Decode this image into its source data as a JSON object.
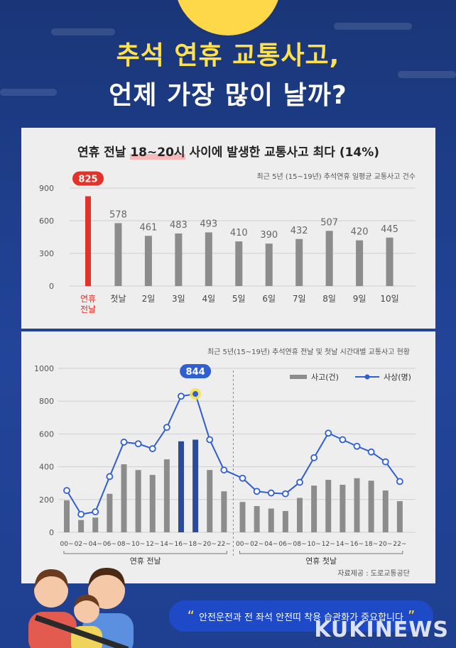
{
  "header": {
    "title_line1": "추석 연휴 교통사고,",
    "title_line2": "언제 가장 많이 날까?"
  },
  "chart_data": [
    {
      "type": "bar",
      "headline_before": "연휴 전날 ",
      "headline_highlight": "18~20시",
      "headline_after": " 사이에 발생한 교통사고 최다 (14%)",
      "subtitle": "최근 5년 (15~19년) 추석연휴 일평균 교통사고 건수",
      "categories": [
        "연휴 전날",
        "첫날",
        "2일",
        "3일",
        "4일",
        "5일",
        "6일",
        "7일",
        "8일",
        "9일",
        "10일"
      ],
      "values": [
        825,
        578,
        461,
        483,
        493,
        410,
        390,
        432,
        507,
        420,
        445
      ],
      "highlight_index": 0,
      "highlight_label": "825",
      "yticks": [
        "0",
        "300",
        "600",
        "900"
      ],
      "ylim": [
        0,
        900
      ],
      "colors": {
        "bar": "#8c8c8c",
        "highlight": "#e2332a",
        "highlight_label": "#e2332a"
      }
    },
    {
      "type": "bar+line",
      "subtitle": "최근 5년(15~19년) 추석연휴 전날 및 첫날 시간대별 교통사고 현황",
      "x": [
        "00~",
        "02~",
        "04~",
        "06~",
        "08~",
        "10~",
        "12~",
        "14~",
        "16~",
        "18~",
        "20~",
        "22~",
        "00~",
        "02~",
        "04~",
        "06~",
        "08~",
        "10~",
        "12~",
        "14~",
        "16~",
        "18~",
        "20~",
        "22~"
      ],
      "group_labels": [
        "연휴 전날",
        "연휴 첫날"
      ],
      "series": [
        {
          "name": "사고(건)",
          "kind": "bar",
          "values": [
            195,
            75,
            90,
            235,
            415,
            380,
            350,
            445,
            555,
            565,
            380,
            250,
            185,
            160,
            145,
            130,
            210,
            285,
            320,
            290,
            330,
            315,
            255,
            190
          ]
        },
        {
          "name": "사상(명)",
          "kind": "line",
          "values": [
            255,
            110,
            125,
            340,
            550,
            540,
            510,
            640,
            830,
            844,
            565,
            380,
            330,
            250,
            240,
            235,
            305,
            455,
            605,
            565,
            525,
            490,
            430,
            310
          ]
        }
      ],
      "highlight_index": 9,
      "highlight_label": "844",
      "yticks": [
        "0",
        "200",
        "400",
        "600",
        "800",
        "1000"
      ],
      "ylim": [
        0,
        1000
      ],
      "source": "자료제공 : 도로교통공단",
      "colors": {
        "bar": "#8c8c8c",
        "bar_highlight": "#2c4a9a",
        "line": "#2f5fd0",
        "highlight": "#f2e24a"
      }
    }
  ],
  "footer": {
    "open_quote": "“",
    "message": "안전운전과 전 좌석 안전띠 착용 습관화가 중요합니다",
    "close_quote": "”",
    "watermark": "KUKINEWS"
  }
}
